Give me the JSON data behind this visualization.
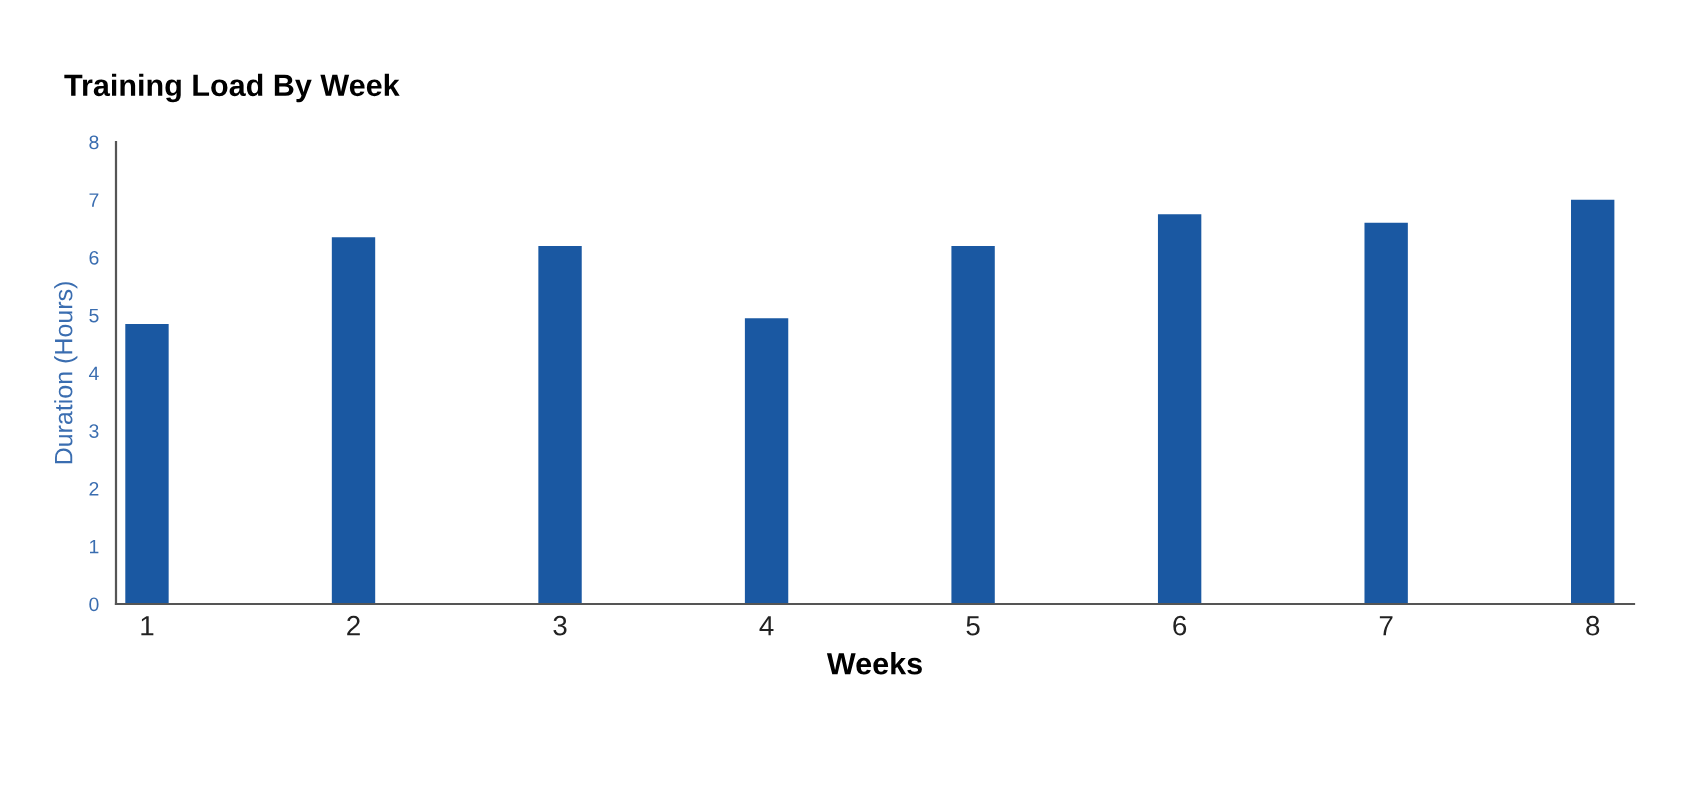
{
  "chart_data": {
    "type": "bar",
    "title": "Training Load By Week",
    "xlabel": "Weeks",
    "ylabel": "Duration (Hours)",
    "x": [
      1,
      2,
      3,
      4,
      5,
      6,
      7,
      8
    ],
    "series": [
      {
        "color": "#1a58a2",
        "values": [
          4.85,
          6.35,
          6.2,
          4.95,
          6.2,
          6.75,
          6.6,
          7.0
        ]
      }
    ],
    "xlim": [
      0.85,
      8.2
    ],
    "xticks": [
      1,
      2,
      3,
      4,
      5,
      6,
      7,
      8
    ],
    "ylim": [
      0,
      8
    ],
    "yticks": [
      0,
      1,
      2,
      3,
      4,
      5,
      6,
      7,
      8
    ],
    "grid": false
  }
}
